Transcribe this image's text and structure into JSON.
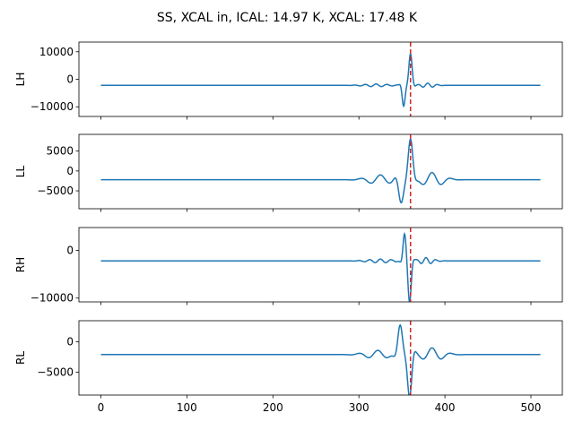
{
  "chart_data": {
    "type": "line",
    "title": "SS, XCAL in, ICAL: 14.97 K, XCAL: 17.48 K",
    "x_ticks": [
      0,
      100,
      200,
      300,
      400,
      500
    ],
    "xlim": [
      -25.5,
      536.5
    ],
    "line_color": "#1f77b4",
    "marker_color": "#d62728",
    "marker_x": 360,
    "panels": [
      {
        "ylabel": "LH",
        "ylim": [
          -13500,
          13500
        ],
        "y_ticks": [
          10000,
          0,
          -10000
        ],
        "baseline": -2200,
        "events": [
          {
            "x": 352,
            "a": -7500,
            "w": 2.2,
            "f": 0.4
          },
          {
            "x": 360,
            "a": 11500,
            "w": 2.3,
            "f": 0.34
          },
          {
            "x": 320,
            "a": 500,
            "w": 14,
            "f": 0.5
          },
          {
            "x": 380,
            "a": 800,
            "w": 8,
            "f": 0.55
          }
        ]
      },
      {
        "ylabel": "LL",
        "ylim": [
          -9500,
          9200
        ],
        "y_ticks": [
          5000,
          0,
          -5000
        ],
        "baseline": -2200,
        "events": [
          {
            "x": 349,
            "a": -6000,
            "w": 4,
            "f": 0.28
          },
          {
            "x": 360,
            "a": 10000,
            "w": 3.4,
            "f": 0.27
          },
          {
            "x": 325,
            "a": 1200,
            "w": 14,
            "f": 0.27
          },
          {
            "x": 385,
            "a": 1800,
            "w": 12,
            "f": 0.28
          }
        ]
      },
      {
        "ylabel": "RH",
        "ylim": [
          -10800,
          4800
        ],
        "y_ticks": [
          0,
          -10000
        ],
        "baseline": -2200,
        "events": [
          {
            "x": 353,
            "a": 5500,
            "w": 2.3,
            "f": 0.42
          },
          {
            "x": 359,
            "a": -8500,
            "w": 2.3,
            "f": 0.36
          },
          {
            "x": 325,
            "a": 400,
            "w": 14,
            "f": 0.5
          },
          {
            "x": 378,
            "a": 700,
            "w": 8,
            "f": 0.55
          }
        ]
      },
      {
        "ylabel": "RL",
        "ylim": [
          -8800,
          3500
        ],
        "y_ticks": [
          0,
          -5000
        ],
        "baseline": -2100,
        "events": [
          {
            "x": 348,
            "a": 4800,
            "w": 3.8,
            "f": 0.3
          },
          {
            "x": 359,
            "a": -7000,
            "w": 3.2,
            "f": 0.29
          },
          {
            "x": 322,
            "a": 700,
            "w": 14,
            "f": 0.28
          },
          {
            "x": 385,
            "a": 1100,
            "w": 12,
            "f": 0.28
          }
        ]
      }
    ]
  }
}
